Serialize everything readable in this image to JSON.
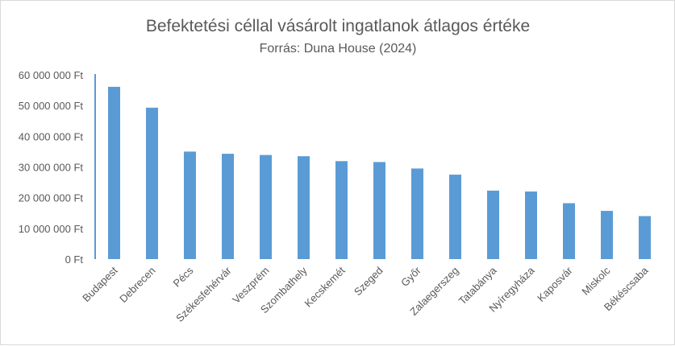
{
  "chart_data": {
    "type": "bar",
    "title": "Befektetési céllal vásárolt ingatlanok átlagos értéke",
    "subtitle": "Forrás: Duna House (2024)",
    "xlabel": "",
    "ylabel": "",
    "categories": [
      "Budapest",
      "Debrecen",
      "Pécs",
      "Székesfehérvár",
      "Veszprém",
      "Szombathely",
      "Kecskemét",
      "Szeged",
      "Győr",
      "Zalaegerszeg",
      "Tatabánya",
      "Nyíregyháza",
      "Kaposvár",
      "Miskolc",
      "Békéscsaba"
    ],
    "values": [
      56100000,
      49300000,
      35000000,
      34300000,
      33900000,
      33500000,
      31900000,
      31600000,
      29500000,
      27500000,
      22300000,
      22000000,
      18200000,
      15700000,
      14000000
    ],
    "ylim": [
      0,
      60000000
    ],
    "yticks": [
      "0 Ft",
      "10 000 000 Ft",
      "20 000 000 Ft",
      "30 000 000 Ft",
      "40 000 000 Ft",
      "50 000 000 Ft",
      "60 000 000 Ft"
    ],
    "grid": false,
    "legend": "none",
    "bar_color": "#5b9bd5",
    "axis_color": "#5b9bd5"
  }
}
